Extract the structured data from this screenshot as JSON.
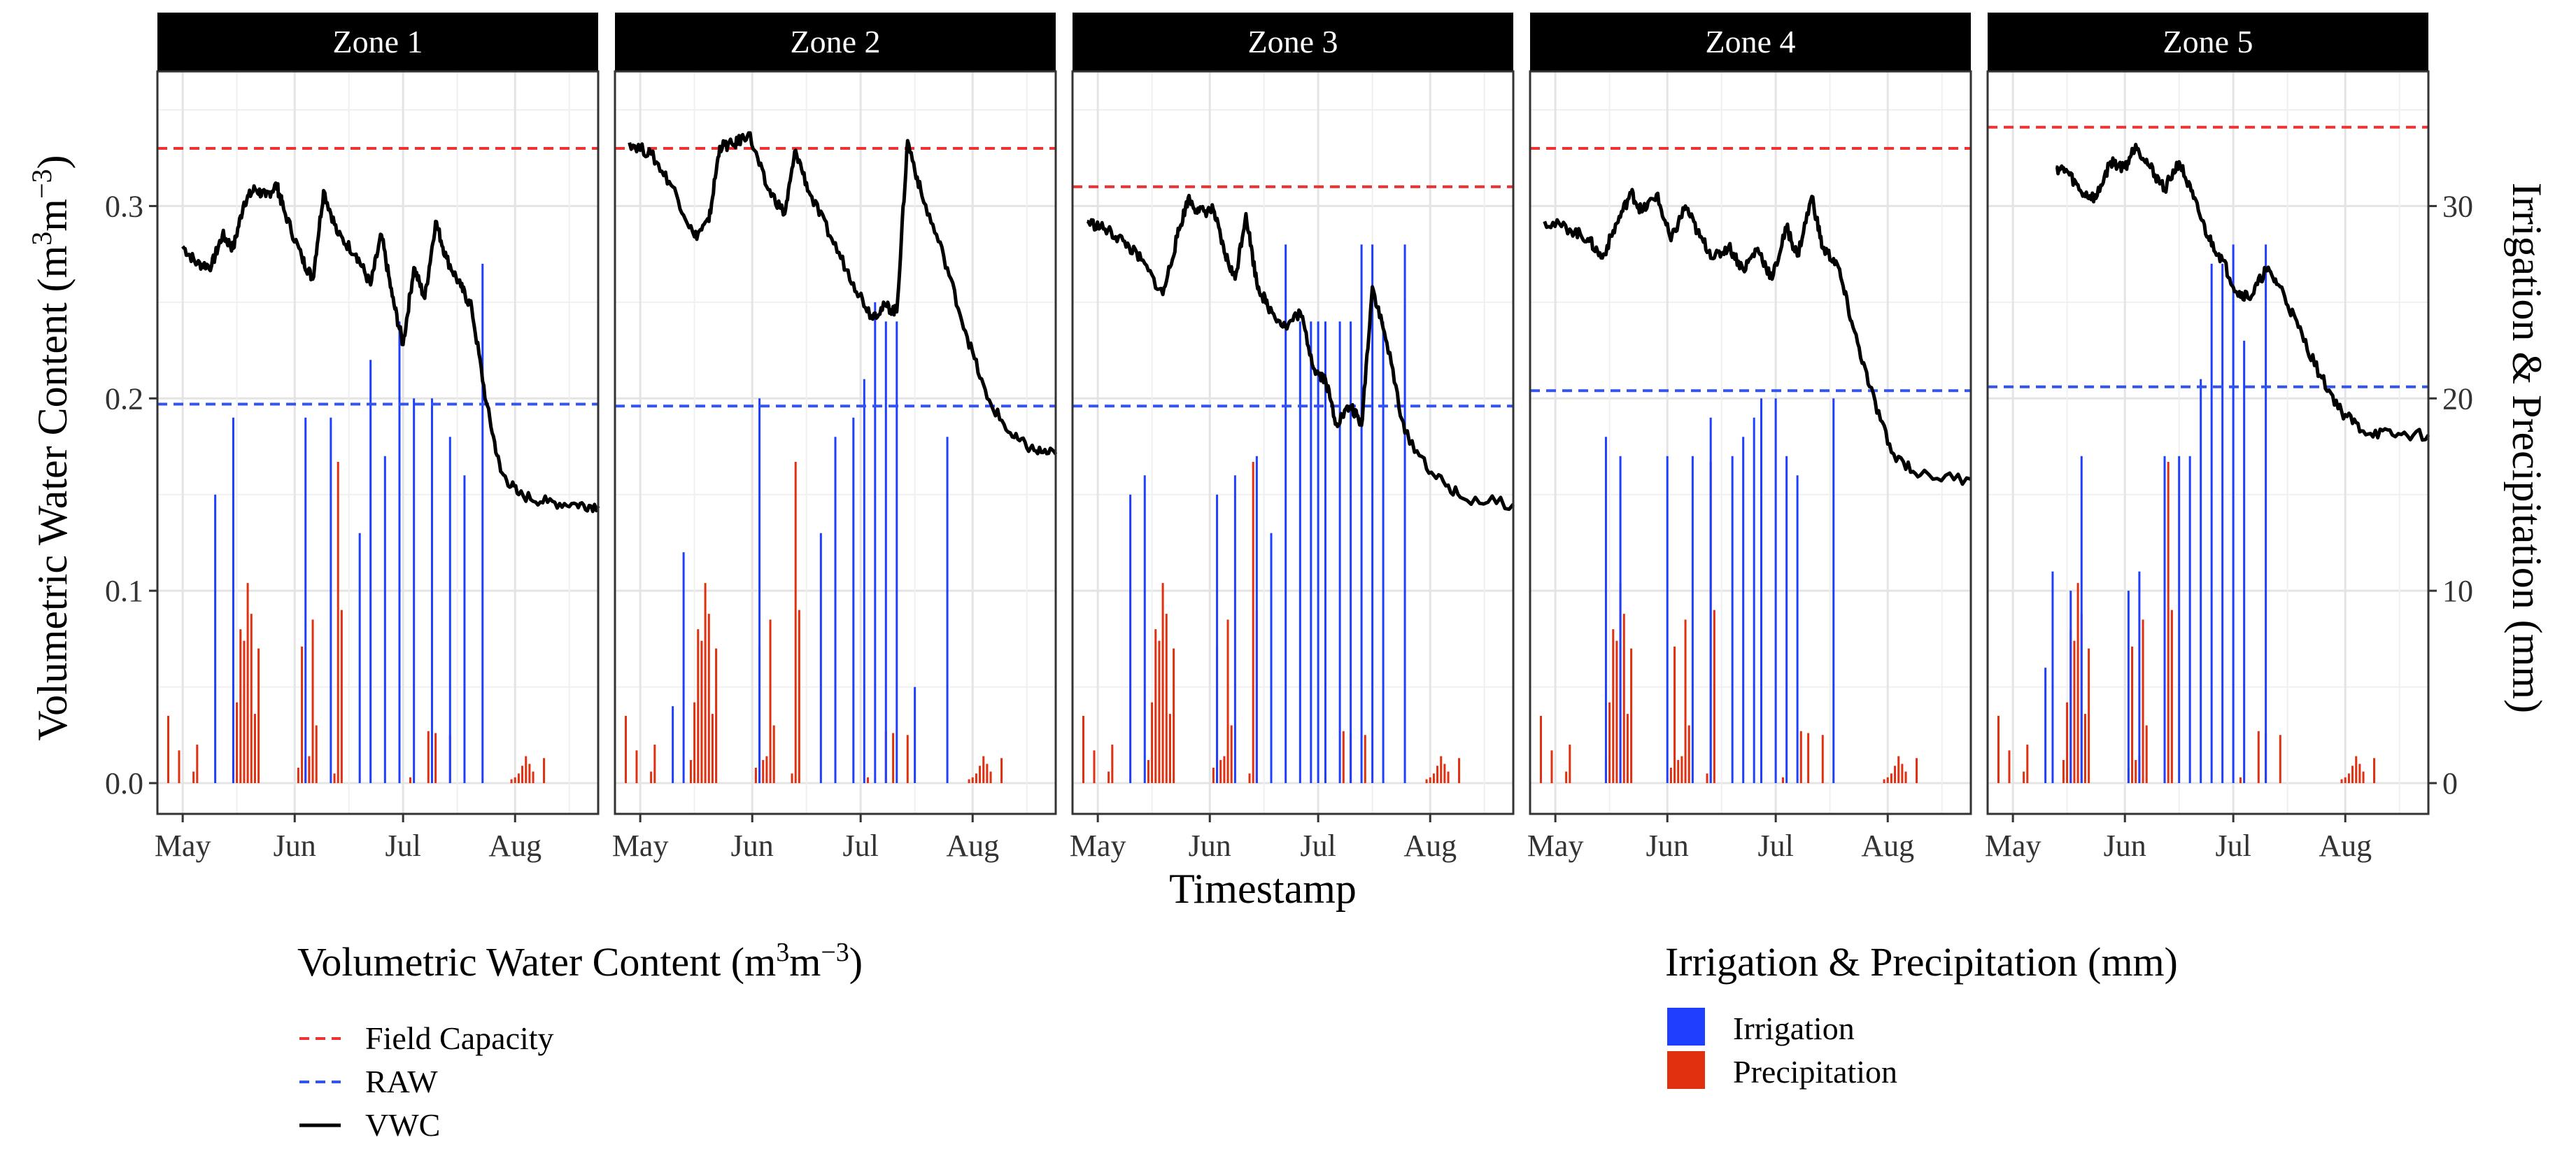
{
  "chart_data": {
    "type": "bar",
    "panels": [
      "Zone 1",
      "Zone 2",
      "Zone 3",
      "Zone 4",
      "Zone 5"
    ],
    "x_ticks": [
      "May",
      "Jun",
      "Jul",
      "Aug"
    ],
    "xlabel": "Timestamp",
    "ylabel_left": "Volumetric Water Content (m³m⁻³)",
    "ylabel_left_parts": {
      "a": "Volumetric Water Content (m",
      "sup1": "3",
      "b": "m",
      "sup2": "−3",
      "c": ")"
    },
    "ylabel_right": "Irrigation & Precipitation (mm)",
    "ylim_left": [
      -0.016,
      0.37
    ],
    "ylim_right": [
      -1.6,
      37
    ],
    "yticks_left": [
      "0.0",
      "0.1",
      "0.2",
      "0.3"
    ],
    "yticks_right": [
      "0",
      "10",
      "20",
      "30"
    ],
    "xlim": [
      "2023-04-24",
      "2023-08-24"
    ],
    "colors": {
      "field_capacity": "#ee3333",
      "raw": "#3355ee",
      "vwc": "#000000",
      "irrigation": "#1f3fff",
      "precipitation": "#e03010",
      "strip": "#000000",
      "grid": "#e4e4e4"
    },
    "field_capacity": [
      0.33,
      0.33,
      0.31,
      0.33,
      0.341
    ],
    "raw": [
      0.197,
      0.196,
      0.196,
      0.204,
      0.206
    ],
    "precipitation_mm": [
      [
        "2023-04-27",
        3.5
      ],
      [
        "2023-04-30",
        1.7
      ],
      [
        "2023-05-04",
        0.6
      ],
      [
        "2023-05-05",
        2.0
      ],
      [
        "2023-05-15",
        1.2
      ],
      [
        "2023-05-16",
        4.2
      ],
      [
        "2023-05-17",
        8.0
      ],
      [
        "2023-05-18",
        7.4
      ],
      [
        "2023-05-19",
        10.4
      ],
      [
        "2023-05-20",
        8.8
      ],
      [
        "2023-05-21",
        3.6
      ],
      [
        "2023-05-22",
        7.0
      ],
      [
        "2023-06-02",
        0.8
      ],
      [
        "2023-06-03",
        7.1
      ],
      [
        "2023-06-04",
        1.2
      ],
      [
        "2023-06-05",
        1.4
      ],
      [
        "2023-06-06",
        8.5
      ],
      [
        "2023-06-07",
        3.0
      ],
      [
        "2023-06-12",
        0.5
      ],
      [
        "2023-06-13",
        16.7
      ],
      [
        "2023-06-14",
        9.0
      ],
      [
        "2023-07-03",
        0.3
      ],
      [
        "2023-07-08",
        2.7
      ],
      [
        "2023-07-10",
        2.6
      ],
      [
        "2023-07-14",
        2.5
      ],
      [
        "2023-07-31",
        0.2
      ],
      [
        "2023-08-01",
        0.3
      ],
      [
        "2023-08-02",
        0.5
      ],
      [
        "2023-08-03",
        0.9
      ],
      [
        "2023-08-04",
        1.4
      ],
      [
        "2023-08-05",
        1.0
      ],
      [
        "2023-08-06",
        0.6
      ],
      [
        "2023-08-09",
        1.3
      ]
    ],
    "irrigation_mm": [
      [
        [
          "2023-05-10",
          15
        ],
        [
          "2023-05-15",
          19
        ],
        [
          "2023-06-04",
          19
        ],
        [
          "2023-06-11",
          19
        ],
        [
          "2023-06-19",
          13
        ],
        [
          "2023-06-22",
          22
        ],
        [
          "2023-06-26",
          17
        ],
        [
          "2023-06-30",
          24
        ],
        [
          "2023-07-04",
          20
        ],
        [
          "2023-07-09",
          20
        ],
        [
          "2023-07-14",
          18
        ],
        [
          "2023-07-18",
          16
        ],
        [
          "2023-07-23",
          27
        ]
      ],
      [
        [
          "2023-05-10",
          4
        ],
        [
          "2023-05-13",
          12
        ],
        [
          "2023-06-03",
          20
        ],
        [
          "2023-06-20",
          13
        ],
        [
          "2023-06-24",
          18
        ],
        [
          "2023-06-29",
          19
        ],
        [
          "2023-07-02",
          21
        ],
        [
          "2023-07-05",
          25
        ],
        [
          "2023-07-08",
          24
        ],
        [
          "2023-07-11",
          24
        ],
        [
          "2023-07-16",
          5
        ],
        [
          "2023-07-25",
          18
        ]
      ],
      [
        [
          "2023-05-10",
          15
        ],
        [
          "2023-05-14",
          16
        ],
        [
          "2023-06-03",
          15
        ],
        [
          "2023-06-08",
          16
        ],
        [
          "2023-06-14",
          17
        ],
        [
          "2023-06-18",
          13
        ],
        [
          "2023-06-22",
          28
        ],
        [
          "2023-06-26",
          24
        ],
        [
          "2023-06-29",
          24
        ],
        [
          "2023-07-01",
          24
        ],
        [
          "2023-07-03",
          24
        ],
        [
          "2023-07-07",
          24
        ],
        [
          "2023-07-10",
          24
        ],
        [
          "2023-07-13",
          28
        ],
        [
          "2023-07-16",
          28
        ],
        [
          "2023-07-19",
          24
        ],
        [
          "2023-07-25",
          28
        ]
      ],
      [
        [
          "2023-05-15",
          18
        ],
        [
          "2023-05-19",
          17
        ],
        [
          "2023-06-01",
          17
        ],
        [
          "2023-06-08",
          17
        ],
        [
          "2023-06-13",
          19
        ],
        [
          "2023-06-19",
          17
        ],
        [
          "2023-06-22",
          18
        ],
        [
          "2023-06-25",
          19
        ],
        [
          "2023-06-27",
          20
        ],
        [
          "2023-07-01",
          20
        ],
        [
          "2023-07-04",
          17
        ],
        [
          "2023-07-07",
          16
        ],
        [
          "2023-07-17",
          20
        ]
      ],
      [
        [
          "2023-05-10",
          6
        ],
        [
          "2023-05-12",
          11
        ],
        [
          "2023-05-17",
          10
        ],
        [
          "2023-05-20",
          17
        ],
        [
          "2023-06-02",
          10
        ],
        [
          "2023-06-05",
          11
        ],
        [
          "2023-06-12",
          17
        ],
        [
          "2023-06-16",
          17
        ],
        [
          "2023-06-19",
          17
        ],
        [
          "2023-06-22",
          21
        ],
        [
          "2023-06-25",
          27
        ],
        [
          "2023-06-28",
          27
        ],
        [
          "2023-07-01",
          28
        ],
        [
          "2023-07-04",
          23
        ],
        [
          "2023-07-10",
          28
        ]
      ]
    ],
    "vwc": [
      [
        [
          "2023-05-01",
          0.279
        ],
        [
          "2023-05-05",
          0.27
        ],
        [
          "2023-05-09",
          0.269
        ],
        [
          "2023-05-12",
          0.285
        ],
        [
          "2023-05-15",
          0.278
        ],
        [
          "2023-05-18",
          0.302
        ],
        [
          "2023-05-21",
          0.309
        ],
        [
          "2023-05-24",
          0.305
        ],
        [
          "2023-05-27",
          0.311
        ],
        [
          "2023-05-29",
          0.298
        ],
        [
          "2023-06-03",
          0.273
        ],
        [
          "2023-06-06",
          0.262
        ],
        [
          "2023-06-09",
          0.308
        ],
        [
          "2023-06-13",
          0.285
        ],
        [
          "2023-06-18",
          0.275
        ],
        [
          "2023-06-22",
          0.259
        ],
        [
          "2023-06-25",
          0.285
        ],
        [
          "2023-06-28",
          0.253
        ],
        [
          "2023-07-01",
          0.228
        ],
        [
          "2023-07-04",
          0.268
        ],
        [
          "2023-07-07",
          0.252
        ],
        [
          "2023-07-10",
          0.292
        ],
        [
          "2023-07-13",
          0.273
        ],
        [
          "2023-07-17",
          0.258
        ],
        [
          "2023-07-20",
          0.247
        ],
        [
          "2023-07-24",
          0.198
        ],
        [
          "2023-07-28",
          0.162
        ],
        [
          "2023-08-02",
          0.15
        ],
        [
          "2023-08-10",
          0.146
        ],
        [
          "2023-08-18",
          0.145
        ],
        [
          "2023-08-24",
          0.144
        ]
      ],
      [
        [
          "2023-04-28",
          0.333
        ],
        [
          "2023-05-04",
          0.327
        ],
        [
          "2023-05-10",
          0.31
        ],
        [
          "2023-05-16",
          0.284
        ],
        [
          "2023-05-20",
          0.292
        ],
        [
          "2023-05-23",
          0.331
        ],
        [
          "2023-05-27",
          0.332
        ],
        [
          "2023-05-31",
          0.338
        ],
        [
          "2023-06-05",
          0.31
        ],
        [
          "2023-06-10",
          0.296
        ],
        [
          "2023-06-13",
          0.329
        ],
        [
          "2023-06-17",
          0.306
        ],
        [
          "2023-06-23",
          0.283
        ],
        [
          "2023-06-29",
          0.26
        ],
        [
          "2023-07-04",
          0.243
        ],
        [
          "2023-07-08",
          0.248
        ],
        [
          "2023-07-11",
          0.245
        ],
        [
          "2023-07-14",
          0.334
        ],
        [
          "2023-07-18",
          0.305
        ],
        [
          "2023-07-24",
          0.274
        ],
        [
          "2023-07-30",
          0.235
        ],
        [
          "2023-08-05",
          0.2
        ],
        [
          "2023-08-12",
          0.18
        ],
        [
          "2023-08-18",
          0.173
        ],
        [
          "2023-08-24",
          0.171
        ]
      ],
      [
        [
          "2023-04-28",
          0.292
        ],
        [
          "2023-05-03",
          0.288
        ],
        [
          "2023-05-08",
          0.282
        ],
        [
          "2023-05-13",
          0.272
        ],
        [
          "2023-05-19",
          0.254
        ],
        [
          "2023-05-23",
          0.284
        ],
        [
          "2023-05-26",
          0.304
        ],
        [
          "2023-05-29",
          0.297
        ],
        [
          "2023-06-02",
          0.298
        ],
        [
          "2023-06-05",
          0.276
        ],
        [
          "2023-06-08",
          0.262
        ],
        [
          "2023-06-11",
          0.296
        ],
        [
          "2023-06-14",
          0.26
        ],
        [
          "2023-06-17",
          0.248
        ],
        [
          "2023-06-22",
          0.237
        ],
        [
          "2023-06-26",
          0.245
        ],
        [
          "2023-06-30",
          0.215
        ],
        [
          "2023-07-03",
          0.21
        ],
        [
          "2023-07-06",
          0.187
        ],
        [
          "2023-07-10",
          0.196
        ],
        [
          "2023-07-13",
          0.186
        ],
        [
          "2023-07-16",
          0.258
        ],
        [
          "2023-07-20",
          0.229
        ],
        [
          "2023-07-25",
          0.182
        ],
        [
          "2023-08-02",
          0.16
        ],
        [
          "2023-08-10",
          0.148
        ],
        [
          "2023-08-24",
          0.145
        ]
      ],
      [
        [
          "2023-04-28",
          0.292
        ],
        [
          "2023-05-05",
          0.288
        ],
        [
          "2023-05-10",
          0.283
        ],
        [
          "2023-05-14",
          0.273
        ],
        [
          "2023-05-18",
          0.291
        ],
        [
          "2023-05-22",
          0.307
        ],
        [
          "2023-05-25",
          0.297
        ],
        [
          "2023-05-29",
          0.306
        ],
        [
          "2023-06-02",
          0.282
        ],
        [
          "2023-06-06",
          0.3
        ],
        [
          "2023-06-10",
          0.284
        ],
        [
          "2023-06-14",
          0.273
        ],
        [
          "2023-06-18",
          0.279
        ],
        [
          "2023-06-22",
          0.267
        ],
        [
          "2023-06-26",
          0.278
        ],
        [
          "2023-06-30",
          0.262
        ],
        [
          "2023-07-04",
          0.289
        ],
        [
          "2023-07-07",
          0.274
        ],
        [
          "2023-07-11",
          0.305
        ],
        [
          "2023-07-14",
          0.278
        ],
        [
          "2023-07-18",
          0.27
        ],
        [
          "2023-07-22",
          0.24
        ],
        [
          "2023-07-27",
          0.206
        ],
        [
          "2023-08-02",
          0.172
        ],
        [
          "2023-08-10",
          0.16
        ],
        [
          "2023-08-24",
          0.158
        ]
      ],
      [
        [
          "2023-05-13",
          0.32
        ],
        [
          "2023-05-16",
          0.318
        ],
        [
          "2023-05-20",
          0.307
        ],
        [
          "2023-05-24",
          0.304
        ],
        [
          "2023-05-28",
          0.323
        ],
        [
          "2023-06-01",
          0.32
        ],
        [
          "2023-06-04",
          0.332
        ],
        [
          "2023-06-08",
          0.32
        ],
        [
          "2023-06-12",
          0.309
        ],
        [
          "2023-06-16",
          0.323
        ],
        [
          "2023-06-20",
          0.304
        ],
        [
          "2023-06-24",
          0.284
        ],
        [
          "2023-06-28",
          0.272
        ],
        [
          "2023-07-02",
          0.255
        ],
        [
          "2023-07-06",
          0.253
        ],
        [
          "2023-07-10",
          0.267
        ],
        [
          "2023-07-14",
          0.258
        ],
        [
          "2023-07-19",
          0.237
        ],
        [
          "2023-07-25",
          0.212
        ],
        [
          "2023-07-31",
          0.193
        ],
        [
          "2023-08-06",
          0.183
        ],
        [
          "2023-08-14",
          0.181
        ],
        [
          "2023-08-24",
          0.181
        ]
      ]
    ],
    "legend_vwc": {
      "title_parts": {
        "a": "Volumetric Water Content (m",
        "sup1": "3",
        "b": "m",
        "sup2": "−3",
        "c": ")"
      },
      "entries": [
        "Field Capacity",
        "RAW",
        "VWC"
      ]
    },
    "legend_ip": {
      "title": "Irrigation & Precipitation (mm)",
      "entries": [
        "Irrigation",
        "Precipitation"
      ]
    }
  }
}
